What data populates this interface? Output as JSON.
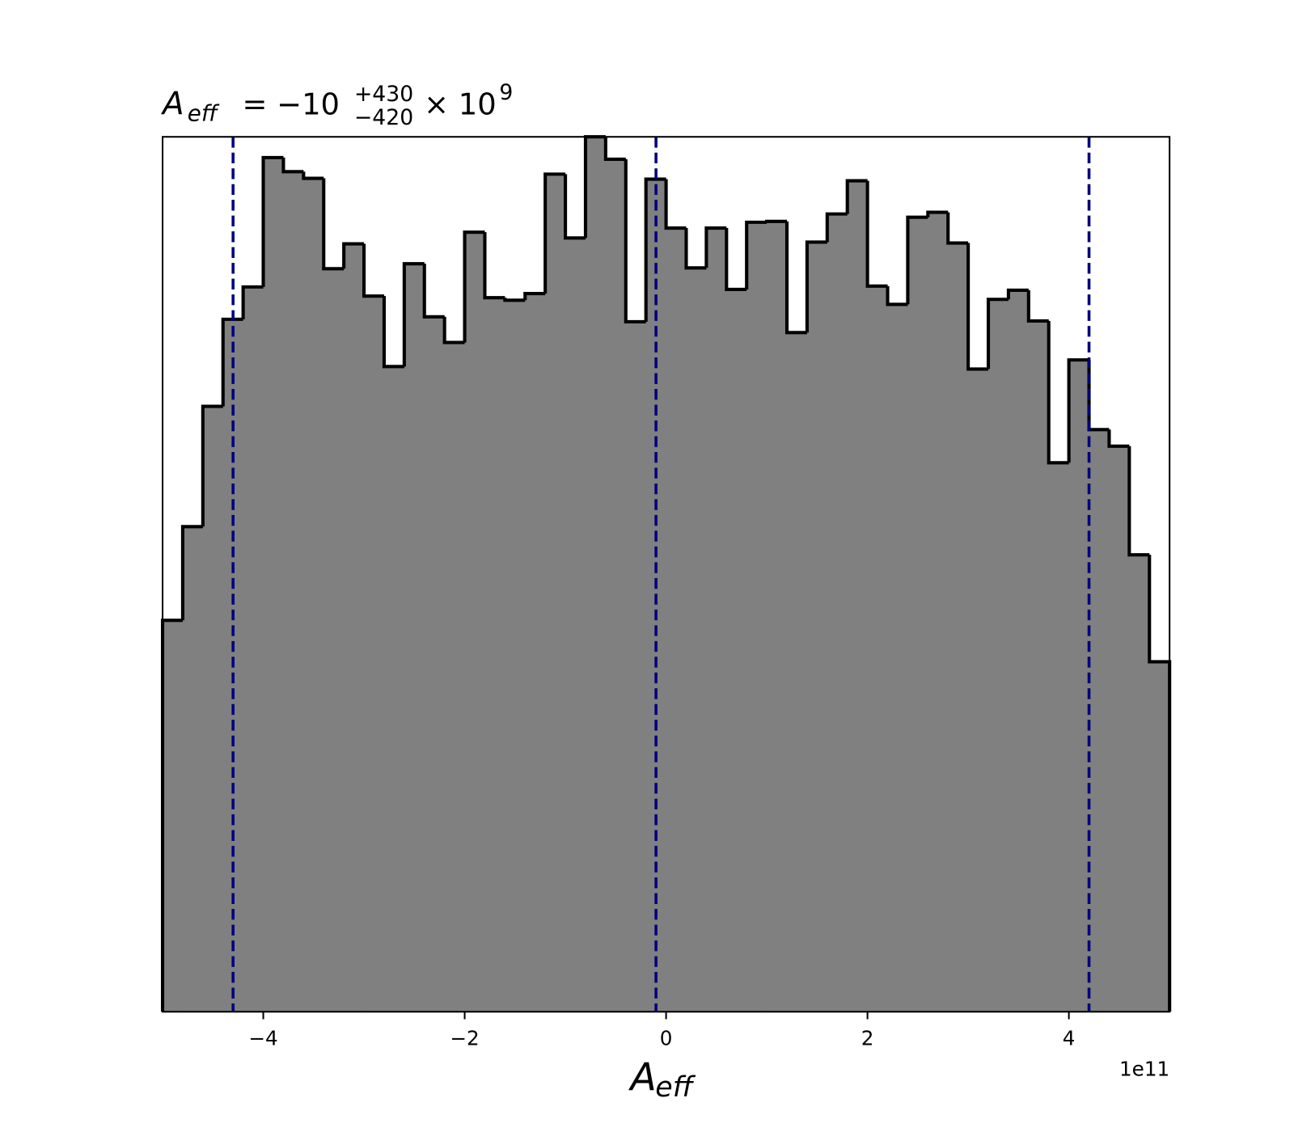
{
  "chart_data": {
    "type": "histogram",
    "title": {
      "symbol": "A",
      "symbol_sub": "eff",
      "main": "= −10",
      "sup": "+430",
      "sub": "−420",
      "times": "× 10",
      "exponent": "9"
    },
    "xlabel": {
      "symbol": "A",
      "symbol_sub": "eff"
    },
    "x_offset_text": "1e11",
    "bins": [
      -5,
      -4.8,
      -4.6,
      -4.4,
      -4.2,
      -4,
      -3.8,
      -3.6,
      -3.4,
      -3.2,
      -3,
      -2.8,
      -2.6,
      -2.4,
      -2.2,
      -2,
      -1.8,
      -1.6,
      -1.4,
      -1.2,
      -1,
      -0.8,
      -0.6,
      -0.4,
      -0.2,
      0,
      0.2,
      0.4,
      0.6,
      0.8,
      1,
      1.2,
      1.4,
      1.6,
      1.8,
      2,
      2.2,
      2.4,
      2.6,
      2.8,
      3,
      3.2,
      3.4,
      3.6,
      3.8,
      4,
      4.2,
      4.4,
      4.6,
      4.8,
      5
    ],
    "values": [
      472,
      585,
      730,
      835,
      874,
      1030,
      1013,
      1005,
      896,
      926,
      863,
      778,
      902,
      838,
      807,
      940,
      861,
      858,
      866,
      1010,
      933,
      1055,
      1028,
      832,
      1004,
      945,
      897,
      945,
      871,
      952,
      953,
      819,
      928,
      962,
      1002,
      875,
      853,
      958,
      964,
      927,
      775,
      859,
      870,
      833,
      662,
      786,
      702,
      682,
      551,
      422
    ],
    "color": "#808080",
    "edgecolor": "#000000",
    "xlim": [
      -5,
      5
    ],
    "ylim": [
      0,
      1055
    ],
    "xticks": [
      {
        "value": -4,
        "label": "−4"
      },
      {
        "value": -2,
        "label": "−2"
      },
      0,
      2,
      4
    ],
    "vlines": {
      "values": [
        -4.3,
        -0.1,
        4.2
      ],
      "color": "#000080",
      "style": "dashed"
    }
  }
}
